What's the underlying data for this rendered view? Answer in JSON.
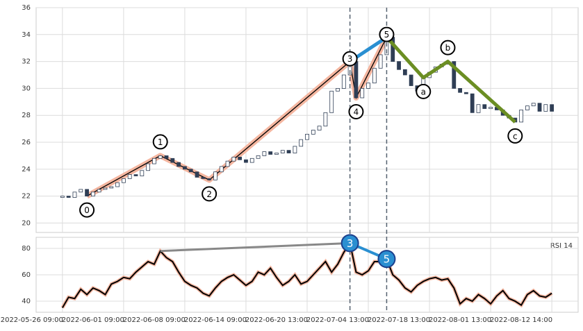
{
  "chart_data": {
    "type": "candlestick",
    "x": [
      0,
      1,
      2,
      3,
      4,
      5,
      6,
      7,
      8,
      9,
      10,
      11,
      12,
      13,
      14,
      15,
      16,
      17,
      18,
      19,
      20,
      21,
      22,
      23,
      24,
      25,
      26,
      27,
      28,
      29,
      30,
      31,
      32,
      33,
      34,
      35,
      36,
      37,
      38,
      39,
      40,
      41,
      42,
      43,
      44,
      45,
      46,
      47,
      48,
      49,
      50,
      51,
      52,
      53,
      54,
      55,
      56,
      57,
      58,
      59,
      60,
      61,
      62,
      63,
      64,
      65,
      66,
      67,
      68,
      69,
      70,
      71,
      72,
      73,
      74,
      75,
      76,
      77,
      78,
      79,
      80
    ],
    "open": [
      21.9,
      22.0,
      21.9,
      22.3,
      22.5,
      22.0,
      22.3,
      22.5,
      22.6,
      22.7,
      23.0,
      23.3,
      23.6,
      23.5,
      23.9,
      24.4,
      24.8,
      25.0,
      24.8,
      24.5,
      24.2,
      24.0,
      23.8,
      23.4,
      23.3,
      23.2,
      23.8,
      24.2,
      24.6,
      24.9,
      24.7,
      24.5,
      24.8,
      25.0,
      25.3,
      25.1,
      25.2,
      25.4,
      25.2,
      25.7,
      26.2,
      26.6,
      26.9,
      27.2,
      28.2,
      29.8,
      30.0,
      31.0,
      32.0,
      29.3,
      30.0,
      30.4,
      31.5,
      32.5,
      33.8,
      32.0,
      31.4,
      31.0,
      30.2,
      29.8,
      30.8,
      31.2,
      31.6,
      31.8,
      32.0,
      30.0,
      29.7,
      29.6,
      28.2,
      28.8,
      28.5,
      28.6,
      28.4,
      28.0,
      27.8,
      27.5,
      28.4,
      28.7,
      28.9,
      28.3,
      28.8
    ],
    "close": [
      22.0,
      21.9,
      22.3,
      22.5,
      22.0,
      22.3,
      22.5,
      22.6,
      22.7,
      23.0,
      23.3,
      23.6,
      23.5,
      23.9,
      24.4,
      24.8,
      25.0,
      24.8,
      24.5,
      24.2,
      24.0,
      23.8,
      23.4,
      23.3,
      23.2,
      23.8,
      24.2,
      24.6,
      24.9,
      24.7,
      24.5,
      24.8,
      25.0,
      25.3,
      25.1,
      25.2,
      25.4,
      25.2,
      25.7,
      26.2,
      26.6,
      26.9,
      27.2,
      28.2,
      29.8,
      30.0,
      31.0,
      32.0,
      29.3,
      30.0,
      30.4,
      31.5,
      32.5,
      33.8,
      32.0,
      31.4,
      31.0,
      30.2,
      29.8,
      30.8,
      31.2,
      31.6,
      31.8,
      32.0,
      30.0,
      29.7,
      29.6,
      28.2,
      28.8,
      28.5,
      28.6,
      28.4,
      28.0,
      27.8,
      27.5,
      28.4,
      28.7,
      28.9,
      28.3,
      28.8,
      28.3
    ],
    "up_color": "#ffffff",
    "down_color": "#2f3e55",
    "xlim": [
      -4.3,
      84.3
    ],
    "xticks": [
      {
        "value": 0,
        "label": "2022-05-26 09:00"
      },
      {
        "value": 10,
        "label": "2022-06-01 09:00"
      },
      {
        "value": 20,
        "label": "2022-06-08 09:00"
      },
      {
        "value": 30,
        "label": "2022-06-14 09:00"
      },
      {
        "value": 40,
        "label": "2022-06-20 13:00"
      },
      {
        "value": 50,
        "label": "2022-07-04 13:00"
      },
      {
        "value": 60,
        "label": "2022-07-18 13:00"
      },
      {
        "value": 70,
        "label": "2022-08-01 13:00"
      },
      {
        "value": 80,
        "label": "2022-08-12 14:00"
      }
    ],
    "ylim": [
      19.3,
      36
    ],
    "yticks": [
      20,
      22,
      24,
      26,
      28,
      30,
      32,
      34,
      36
    ],
    "grid": true,
    "waves": {
      "impulse": {
        "labels": [
          "0",
          "1",
          "2",
          "3",
          "4",
          "5"
        ],
        "x": [
          4,
          16,
          24,
          47,
          48,
          53
        ],
        "values": [
          22.0,
          25.0,
          23.2,
          32.0,
          29.3,
          33.8
        ],
        "color": "#f4b6a0"
      },
      "extension_color": "#2a8fd1",
      "correction": {
        "labels": [
          "a",
          "b",
          "c"
        ],
        "x": [
          59,
          63,
          74
        ],
        "values": [
          30.8,
          32.0,
          27.5
        ],
        "color": "#6b8e23"
      }
    },
    "rsi": {
      "label": "RSI 14",
      "values": [
        35,
        43,
        42,
        49,
        45,
        50,
        48,
        45,
        53,
        55,
        58,
        57,
        62,
        66,
        70,
        68,
        78,
        73,
        70,
        62,
        55,
        52,
        50,
        46,
        44,
        50,
        55,
        58,
        60,
        56,
        52,
        55,
        62,
        60,
        65,
        58,
        52,
        55,
        60,
        53,
        55,
        60,
        65,
        70,
        62,
        68,
        77,
        84,
        62,
        60,
        63,
        70,
        70,
        72,
        60,
        56,
        50,
        47,
        52,
        55,
        57,
        58,
        56,
        57,
        50,
        38,
        42,
        40,
        45,
        42,
        38,
        44,
        48,
        42,
        40,
        37,
        45,
        48,
        44,
        43,
        46
      ],
      "ylim": [
        31.6,
        88.4
      ],
      "yticks": [
        40,
        60,
        80
      ],
      "divergence_labels": [
        "3",
        "5"
      ]
    }
  }
}
